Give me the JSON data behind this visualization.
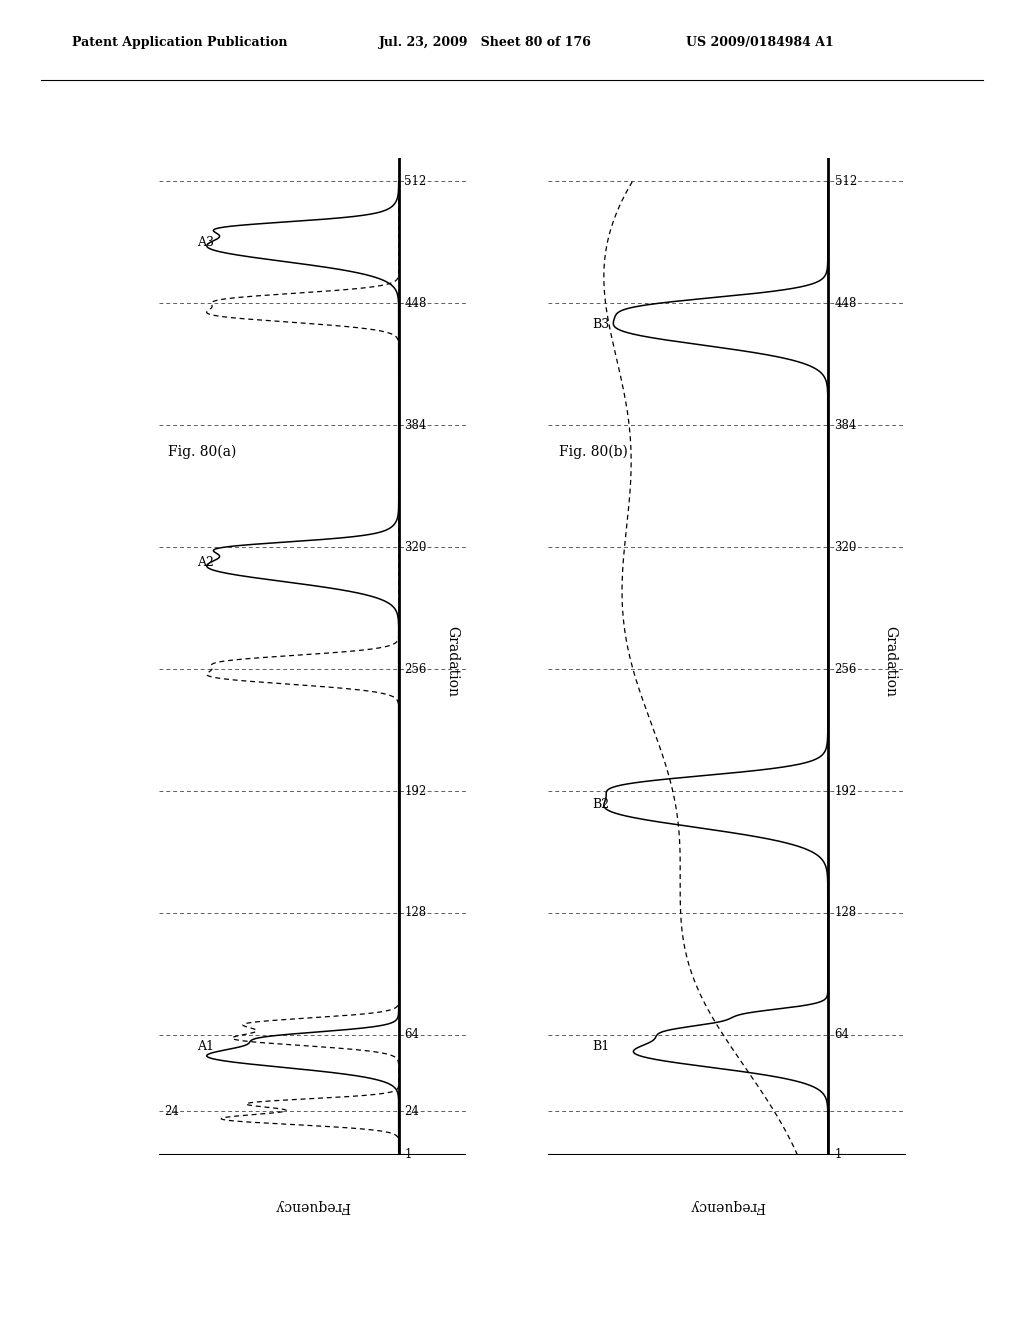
{
  "header_left": "Patent Application Publication",
  "header_mid": "Jul. 23, 2009   Sheet 80 of 176",
  "header_right": "US 2009/0184984 A1",
  "fig_a_label": "Fig. 80(a)",
  "fig_b_label": "Fig. 80(b)",
  "gradation_ticks": [
    1,
    24,
    64,
    128,
    192,
    256,
    320,
    384,
    448,
    512
  ],
  "gradation_label": "Gradation",
  "frequency_label": "Frequency",
  "background_color": "#ffffff",
  "chart_a": {
    "solid_peaks": [
      {
        "mu": 53,
        "sigma": 6,
        "amp": 1.0
      },
      {
        "mu": 63,
        "sigma": 3,
        "amp": 0.45
      },
      {
        "mu": 310,
        "sigma": 8,
        "amp": 1.0
      },
      {
        "mu": 320,
        "sigma": 3,
        "amp": 0.45
      },
      {
        "mu": 478,
        "sigma": 8,
        "amp": 1.0
      },
      {
        "mu": 488,
        "sigma": 3,
        "amp": 0.45
      }
    ],
    "dashed_peaks": [
      {
        "mu": 20,
        "sigma": 3,
        "amp": 0.6
      },
      {
        "mu": 28,
        "sigma": 2.5,
        "amp": 0.5
      },
      {
        "mu": 62,
        "sigma": 3.5,
        "amp": 0.55
      },
      {
        "mu": 70,
        "sigma": 3,
        "amp": 0.48
      },
      {
        "mu": 252,
        "sigma": 4,
        "amp": 0.6
      },
      {
        "mu": 260,
        "sigma": 3.5,
        "amp": 0.52
      },
      {
        "mu": 442,
        "sigma": 4,
        "amp": 0.6
      },
      {
        "mu": 450,
        "sigma": 3.5,
        "amp": 0.52
      }
    ],
    "point_labels": [
      "A1",
      "A2",
      "A3"
    ],
    "point_grads": [
      58,
      312,
      480
    ]
  },
  "chart_b": {
    "solid_peaks": [
      {
        "mu": 55,
        "sigma": 8,
        "amp": 0.75
      },
      {
        "mu": 67,
        "sigma": 4,
        "amp": 0.35
      },
      {
        "mu": 75,
        "sigma": 3,
        "amp": 0.25
      },
      {
        "mu": 183,
        "sigma": 10,
        "amp": 0.85
      },
      {
        "mu": 196,
        "sigma": 5,
        "amp": 0.4
      },
      {
        "mu": 435,
        "sigma": 9,
        "amp": 0.8
      },
      {
        "mu": 447,
        "sigma": 5,
        "amp": 0.38
      }
    ],
    "dashed_broad": [
      {
        "mu": 480,
        "sigma": 80,
        "amp": 1.0
      },
      {
        "mu": 280,
        "sigma": 90,
        "amp": 0.95
      },
      {
        "mu": 100,
        "sigma": 60,
        "amp": 0.55
      }
    ],
    "point_labels": [
      "B1",
      "B2",
      "B3"
    ],
    "point_grads": [
      58,
      185,
      437
    ]
  }
}
